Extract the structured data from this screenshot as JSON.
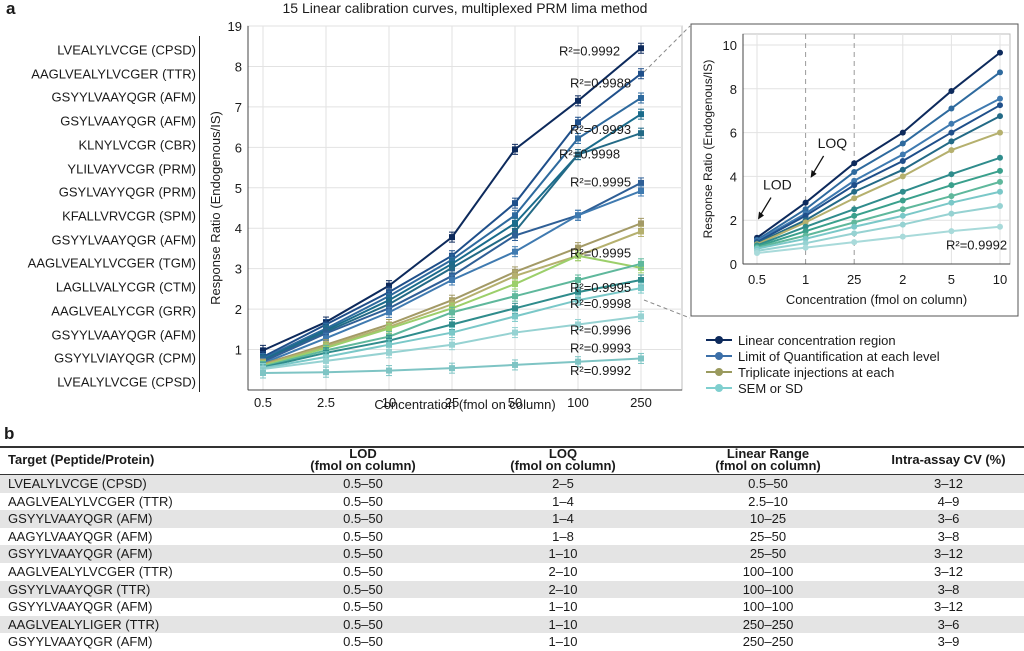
{
  "panel_a_label": "a",
  "panel_b_label": "b",
  "peptides": [
    "LVEALYLVCGE (CPSD)",
    "AAGLVEALYLVCGER (TTR)",
    "GSYYLVAAYQGR (AFM)",
    "GSYLVAAYQGR (AFM)",
    "KLNYLVCGR (CBR)",
    "YLILVAYVCGR (PRM)",
    "GSYLVAYYQGR (PRM)",
    "KFALLVRVCGR (SPM)",
    "GSYYLVAAYQGR (AFM)",
    "AAGLVEALYLVCGER (TGM)",
    "LAGLLVALYCGR (CTM)",
    "AAGLVEALYCGR (GRR)",
    "GSYYLVAAYQGR (AFM)",
    "GSYYLVIAYQGR (CPM)",
    "LVEALYLVCGE (CPSD)"
  ],
  "legend": [
    {
      "label": "Linear concentration region",
      "color": "#0d2a5c"
    },
    {
      "label": "Limit of Quantification at each level",
      "color": "#3c6fa8"
    },
    {
      "label": "Triplicate injections at each",
      "color": "#9a9a5e"
    },
    {
      "label": "SEM or SD",
      "color": "#7fcfcf"
    }
  ],
  "chart_data": [
    {
      "type": "line",
      "title": "15 Linear calibration curves, multiplexed PRM lima method",
      "xlabel": "Concentration (fmol on column)",
      "ylabel": "Response Ratio (Endogenous/IS)",
      "categories": [
        "0.5",
        "2.5",
        "10",
        "25",
        "50",
        "100",
        "250"
      ],
      "ylim": [
        0,
        9
      ],
      "y_ticks": [
        1,
        2,
        3,
        4,
        5,
        6,
        7,
        8,
        9
      ],
      "y_top_label": "19",
      "grid": true,
      "series": [
        {
          "values": [
            0.98,
            1.68,
            2.58,
            3.78,
            5.95,
            7.15,
            8.45
          ],
          "color": "#0d2a5c"
        },
        {
          "values": [
            0.82,
            1.62,
            2.42,
            3.32,
            4.62,
            6.62,
            7.82
          ],
          "color": "#1f4f8a"
        },
        {
          "values": [
            0.78,
            1.52,
            2.32,
            3.22,
            4.32,
            6.22,
            7.22
          ],
          "color": "#2e6a9e"
        },
        {
          "values": [
            0.74,
            1.48,
            2.22,
            3.12,
            4.12,
            5.82,
            6.82
          ],
          "color": "#1a6c8c"
        },
        {
          "values": [
            0.72,
            1.44,
            2.12,
            3.02,
            3.92,
            5.82,
            6.35
          ],
          "color": "#236a86"
        },
        {
          "values": [
            0.7,
            1.4,
            2.02,
            2.82,
            3.82,
            4.32,
            5.12
          ],
          "color": "#2f5f96"
        },
        {
          "values": [
            0.66,
            1.28,
            1.92,
            2.72,
            3.42,
            4.32,
            4.92
          ],
          "color": "#3f7ab0"
        },
        {
          "values": [
            0.64,
            1.12,
            1.62,
            2.22,
            2.92,
            3.52,
            4.12
          ],
          "color": "#a39a66"
        },
        {
          "values": [
            0.62,
            1.08,
            1.56,
            2.12,
            2.82,
            3.32,
            3.92
          ],
          "color": "#b5b06e"
        },
        {
          "values": [
            0.6,
            1.04,
            1.52,
            2.02,
            2.62,
            3.32,
            3.02
          ],
          "color": "#9ccf6a"
        },
        {
          "values": [
            0.58,
            0.98,
            1.32,
            1.92,
            2.32,
            2.72,
            3.12
          ],
          "color": "#5fb89c"
        },
        {
          "values": [
            0.56,
            0.92,
            1.22,
            1.62,
            2.02,
            2.42,
            2.72
          ],
          "color": "#2f8c8c"
        },
        {
          "values": [
            0.54,
            0.82,
            1.12,
            1.42,
            1.82,
            2.22,
            2.52
          ],
          "color": "#7ac8c8"
        },
        {
          "values": [
            0.52,
            0.72,
            0.92,
            1.12,
            1.42,
            1.62,
            1.82
          ],
          "color": "#96d2d2"
        },
        {
          "values": [
            0.42,
            0.44,
            0.48,
            0.54,
            0.62,
            0.7,
            0.78
          ],
          "color": "#7ec4c4"
        }
      ],
      "annotations": [
        {
          "text": "R²=0.9992",
          "x": "250",
          "y": 8.4
        },
        {
          "text": "R²=0.9988",
          "x": "100",
          "y": 7.6
        },
        {
          "text": "R²=0.9993",
          "x": "100",
          "y": 6.45
        },
        {
          "text": "R²=0.9998",
          "x": "250",
          "y": 5.85
        },
        {
          "text": "R²=0.9995",
          "x": "100",
          "y": 5.15
        },
        {
          "text": "R²=0.9995",
          "x": "100",
          "y": 3.4
        },
        {
          "text": "R²=0.9995",
          "x": "100",
          "y": 2.55
        },
        {
          "text": "R²=0.9998",
          "x": "100",
          "y": 2.15
        },
        {
          "text": "R²=0.9996",
          "x": "100",
          "y": 1.5
        },
        {
          "text": "R²=0.9993",
          "x": "100",
          "y": 1.05
        },
        {
          "text": "R²=0.9992",
          "x": "100",
          "y": 0.5
        }
      ]
    },
    {
      "type": "line",
      "xlabel": "Concentration (fmol on column)",
      "ylabel": "Response Ratio (Endogenous/IS)",
      "categories": [
        "0.5",
        "1",
        "25",
        "2",
        "5",
        "10"
      ],
      "ylim": [
        0,
        10.5
      ],
      "y_ticks": [
        0,
        2,
        4,
        6,
        8,
        10
      ],
      "dashed_x": [
        "1",
        "25"
      ],
      "series": [
        {
          "values": [
            1.2,
            2.8,
            4.6,
            6.0,
            7.9,
            9.65
          ],
          "color": "#0d2a5c"
        },
        {
          "values": [
            1.1,
            2.5,
            4.2,
            5.5,
            7.1,
            8.75
          ],
          "color": "#2e6a9e"
        },
        {
          "values": [
            1.05,
            2.3,
            3.8,
            5.0,
            6.4,
            7.55
          ],
          "color": "#3f7ab0"
        },
        {
          "values": [
            1.0,
            2.2,
            3.6,
            4.7,
            6.0,
            7.25
          ],
          "color": "#1f4f8a"
        },
        {
          "values": [
            0.95,
            2.0,
            3.3,
            4.3,
            5.6,
            6.75
          ],
          "color": "#236a86"
        },
        {
          "values": [
            0.9,
            1.9,
            3.0,
            4.0,
            5.2,
            6.0
          ],
          "color": "#b5b06e"
        },
        {
          "values": [
            0.85,
            1.7,
            2.5,
            3.3,
            4.1,
            4.85
          ],
          "color": "#2f8c8c"
        },
        {
          "values": [
            0.8,
            1.5,
            2.2,
            2.9,
            3.6,
            4.25
          ],
          "color": "#3aa08c"
        },
        {
          "values": [
            0.75,
            1.3,
            1.9,
            2.5,
            3.1,
            3.75
          ],
          "color": "#5fb89c"
        },
        {
          "values": [
            0.7,
            1.15,
            1.7,
            2.2,
            2.8,
            3.3
          ],
          "color": "#7ac8c8"
        },
        {
          "values": [
            0.6,
            0.95,
            1.4,
            1.8,
            2.3,
            2.65
          ],
          "color": "#96d2d2"
        },
        {
          "values": [
            0.5,
            0.75,
            1.0,
            1.25,
            1.5,
            1.7
          ],
          "color": "#a8dada"
        }
      ],
      "annotations": [
        {
          "text": "LOD",
          "x": "0.5",
          "y": 3.4
        },
        {
          "text": "LOQ",
          "x": "1",
          "y": 5.3
        },
        {
          "text": "R²=0.9992",
          "x": "10",
          "y": 0.9
        }
      ]
    },
    {
      "type": "table",
      "columns": [
        {
          "line1": "Target (Peptide/Protein)",
          "line2": ""
        },
        {
          "line1": "LOD",
          "line2": "(fmol on column)"
        },
        {
          "line1": "LOQ",
          "line2": "(fmol on column)"
        },
        {
          "line1": "Linear Range",
          "line2": "(fmol on column)"
        },
        {
          "line1": "Intra-assay CV (%)",
          "line2": ""
        }
      ],
      "rows": [
        [
          "LVEALYLVCGE (CPSD)",
          "0.5–50",
          "2–5",
          "0.5–50",
          "3–12"
        ],
        [
          "AAGLVEALYLVCGER (TTR)",
          "0.5–50",
          "1–4",
          "2.5–10",
          "4–9"
        ],
        [
          "GSYYLVAAYQGR (AFM)",
          "0.5–50",
          "1–4",
          "10–25",
          "3–6"
        ],
        [
          "AAGYLVAAYQGR (AFM)",
          "0.5–50",
          "1–8",
          "25–50",
          "3–8"
        ],
        [
          "GSYYLVAAYQGR (AFM)",
          "0.5–50",
          "1–10",
          "25–50",
          "3–12"
        ],
        [
          "AAGLVEALYLVCGER (TTR)",
          "0.5–50",
          "2–10",
          "100–100",
          "3–12"
        ],
        [
          "GSYYLVAAYQGR (TTR)",
          "0.5–50",
          "2–10",
          "100–100",
          "3–8"
        ],
        [
          "GSYYLVAAYQGR (AFM)",
          "0.5–50",
          "1–10",
          "100–100",
          "3–12"
        ],
        [
          "AAGLVEALYLIGER (TTR)",
          "0.5–50",
          "1–10",
          "250–250",
          "3–6"
        ],
        [
          "GSYYLVAAYQGR (AFM)",
          "0.5–50",
          "1–10",
          "250–250",
          "3–9"
        ]
      ]
    }
  ]
}
